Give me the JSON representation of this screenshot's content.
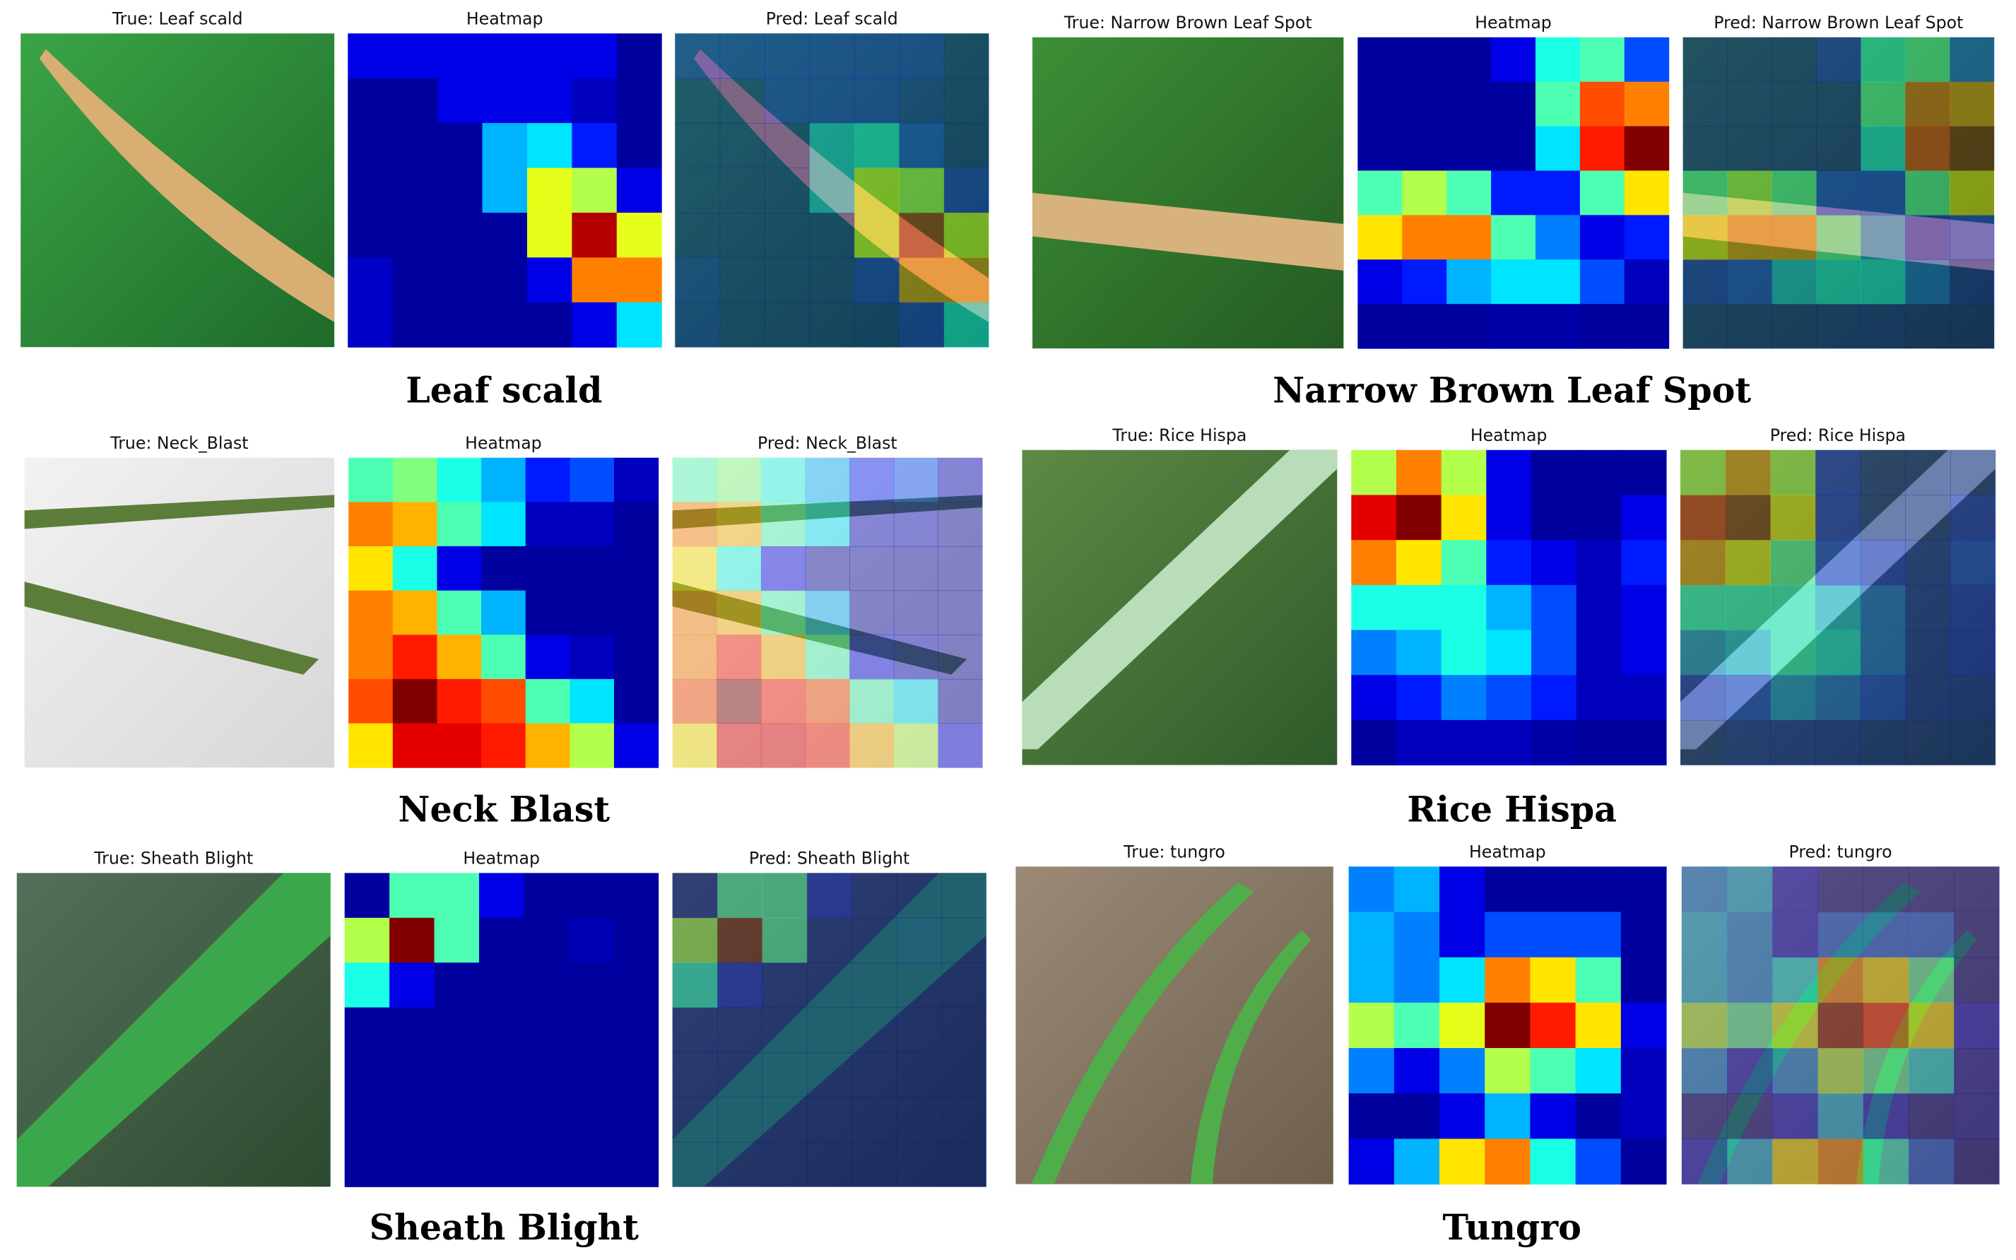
{
  "panels": [
    {
      "caption": "Leaf scald",
      "true_label": "True: Leaf scald",
      "heatmap_title": "Heatmap",
      "pred_label": "Pred: Leaf scald",
      "heatmap": [
        [
          1,
          1,
          1,
          1,
          1,
          1,
          0.3
        ],
        [
          0.3,
          0.3,
          1,
          1,
          1,
          0.6,
          0.3
        ],
        [
          0.3,
          0.3,
          0.3,
          3,
          3.5,
          1.5,
          0.3
        ],
        [
          0.3,
          0.3,
          0.3,
          3,
          6,
          5.5,
          1
        ],
        [
          0.3,
          0.3,
          0.3,
          0.3,
          6,
          9.5,
          6
        ],
        [
          0.7,
          0.3,
          0.3,
          0.3,
          1,
          7.5,
          7.5
        ],
        [
          0.7,
          0.3,
          0.3,
          0.3,
          0.3,
          1,
          3.5
        ]
      ]
    },
    {
      "caption": "Narrow Brown Leaf Spot",
      "true_label": "True: Narrow Brown Leaf Spot",
      "heatmap_title": "Heatmap",
      "pred_label": "Pred: Narrow Brown Leaf Spot",
      "heatmap": [
        [
          0.3,
          0.3,
          0.3,
          1,
          4,
          4.5,
          2
        ],
        [
          0.3,
          0.3,
          0.3,
          0.3,
          4.5,
          8,
          7.5
        ],
        [
          0.3,
          0.3,
          0.3,
          0.3,
          3.5,
          8.5,
          10
        ],
        [
          4.5,
          5.5,
          4.5,
          1.5,
          1.5,
          4.5,
          6.5
        ],
        [
          6.5,
          7.5,
          7.5,
          4.5,
          2.5,
          1,
          1.5
        ],
        [
          1,
          1.5,
          3,
          3.5,
          3.5,
          2,
          0.6
        ],
        [
          0.3,
          0.3,
          0.3,
          0.4,
          0.4,
          0.3,
          0.3
        ]
      ]
    },
    {
      "caption": "Neck Blast",
      "true_label": "True: Neck_Blast",
      "heatmap_title": "Heatmap",
      "pred_label": "Pred: Neck_Blast",
      "heatmap": [
        [
          4.5,
          5,
          4,
          3,
          1.5,
          2,
          0.6
        ],
        [
          7.5,
          7,
          4.5,
          3.5,
          0.6,
          0.6,
          0.3
        ],
        [
          6.5,
          4,
          1,
          0.3,
          0.3,
          0.3,
          0.3
        ],
        [
          7.5,
          7,
          4.5,
          3,
          0.3,
          0.3,
          0.3
        ],
        [
          7.5,
          8.5,
          7,
          4.5,
          1,
          0.6,
          0.3
        ],
        [
          8,
          10,
          8.5,
          8,
          4.5,
          3.5,
          0.3
        ],
        [
          6.5,
          9,
          9,
          8.5,
          7,
          5.5,
          1
        ]
      ]
    },
    {
      "caption": "Rice Hispa",
      "true_label": "True: Rice Hispa",
      "heatmap_title": "Heatmap",
      "pred_label": "Pred: Rice Hispa",
      "heatmap": [
        [
          5.5,
          7.5,
          5.5,
          1,
          0.3,
          0.3,
          0.3
        ],
        [
          9,
          10,
          6.5,
          1,
          0.3,
          0.3,
          1
        ],
        [
          7.5,
          6.5,
          4.5,
          1.5,
          1,
          0.6,
          1.5
        ],
        [
          4,
          4,
          4,
          3,
          2,
          0.6,
          1
        ],
        [
          2.5,
          3,
          4,
          3.5,
          2,
          0.6,
          1
        ],
        [
          1,
          1.5,
          2.5,
          2,
          1.5,
          0.6,
          0.6
        ],
        [
          0.3,
          0.6,
          0.6,
          0.6,
          0.4,
          0.3,
          0.3
        ]
      ]
    },
    {
      "caption": "Sheath Blight",
      "true_label": "True: Sheath Blight",
      "heatmap_title": "Heatmap",
      "pred_label": "Pred: Sheath Blight",
      "heatmap": [
        [
          0.3,
          4.5,
          4.5,
          1,
          0.3,
          0.3,
          0.3
        ],
        [
          5.5,
          10,
          4.5,
          0.3,
          0.3,
          0.5,
          0.3
        ],
        [
          4,
          1,
          0.3,
          0.3,
          0.3,
          0.3,
          0.3
        ],
        [
          0.3,
          0.3,
          0.3,
          0.3,
          0.3,
          0.3,
          0.3
        ],
        [
          0.3,
          0.3,
          0.3,
          0.3,
          0.3,
          0.3,
          0.3
        ],
        [
          0.3,
          0.3,
          0.3,
          0.3,
          0.3,
          0.3,
          0.3
        ],
        [
          0.3,
          0.3,
          0.3,
          0.3,
          0.3,
          0.3,
          0.3
        ]
      ]
    },
    {
      "caption": "Tungro",
      "true_label": "True: tungro",
      "heatmap_title": "Heatmap",
      "pred_label": "Pred: tungro",
      "heatmap": [
        [
          2.5,
          3,
          1,
          0.3,
          0.3,
          0.3,
          0.3
        ],
        [
          3,
          2.5,
          1,
          2,
          2,
          2,
          0.3
        ],
        [
          3,
          2.5,
          3.5,
          7.5,
          6.5,
          4.5,
          0.3
        ],
        [
          5.5,
          4.5,
          6,
          10,
          8.5,
          6.5,
          1
        ],
        [
          2.5,
          1,
          2.5,
          5.5,
          4.5,
          3.5,
          0.6
        ],
        [
          0.3,
          0.3,
          1,
          3,
          1,
          0.3,
          0.6
        ],
        [
          1,
          3,
          6.5,
          7.5,
          4,
          2,
          0.3
        ]
      ]
    }
  ]
}
